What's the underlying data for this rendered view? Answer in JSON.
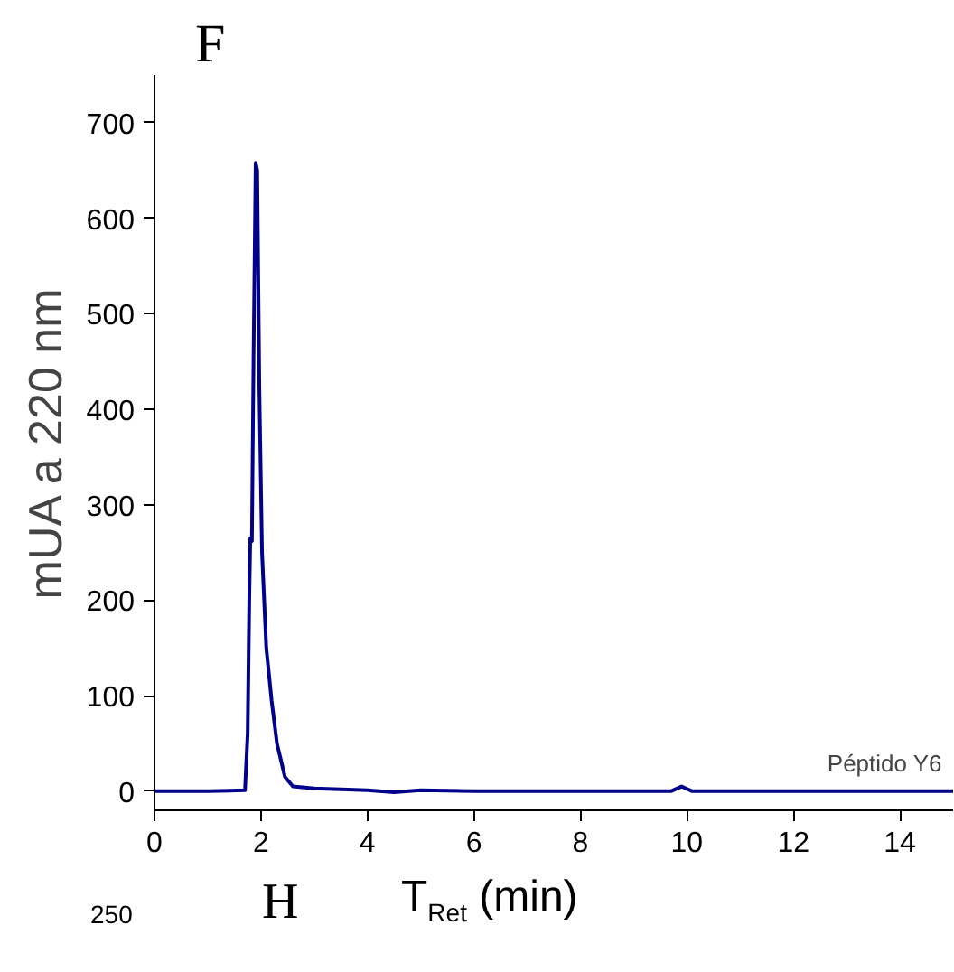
{
  "chart_data": {
    "type": "line",
    "xlabel": "T$_{Ret}$ (min)",
    "ylabel": "mUA a 220 nm",
    "xlim": [
      0,
      15
    ],
    "xticks": [
      0,
      2,
      4,
      6,
      8,
      10,
      12,
      14
    ],
    "ylim": [
      -20,
      750
    ],
    "yticks": [
      0,
      100,
      200,
      300,
      400,
      500,
      600,
      700
    ],
    "grid": false,
    "series": [
      {
        "name": "Péptido Y6",
        "color": "#00008b",
        "x": [
          0,
          1.0,
          1.7,
          1.75,
          1.78,
          1.8,
          1.83,
          1.86,
          1.9,
          1.93,
          1.97,
          2.02,
          2.1,
          2.2,
          2.3,
          2.45,
          2.6,
          3.0,
          4.0,
          4.5,
          5.0,
          6.0,
          9.7,
          9.9,
          10.1,
          15
        ],
        "values": [
          0,
          0,
          1,
          60,
          200,
          265,
          262,
          450,
          658,
          650,
          420,
          250,
          150,
          95,
          50,
          15,
          5,
          3,
          1,
          -1,
          1,
          0,
          0,
          5,
          0,
          0
        ]
      }
    ],
    "annotations": [
      "F",
      "H",
      "250"
    ]
  }
}
